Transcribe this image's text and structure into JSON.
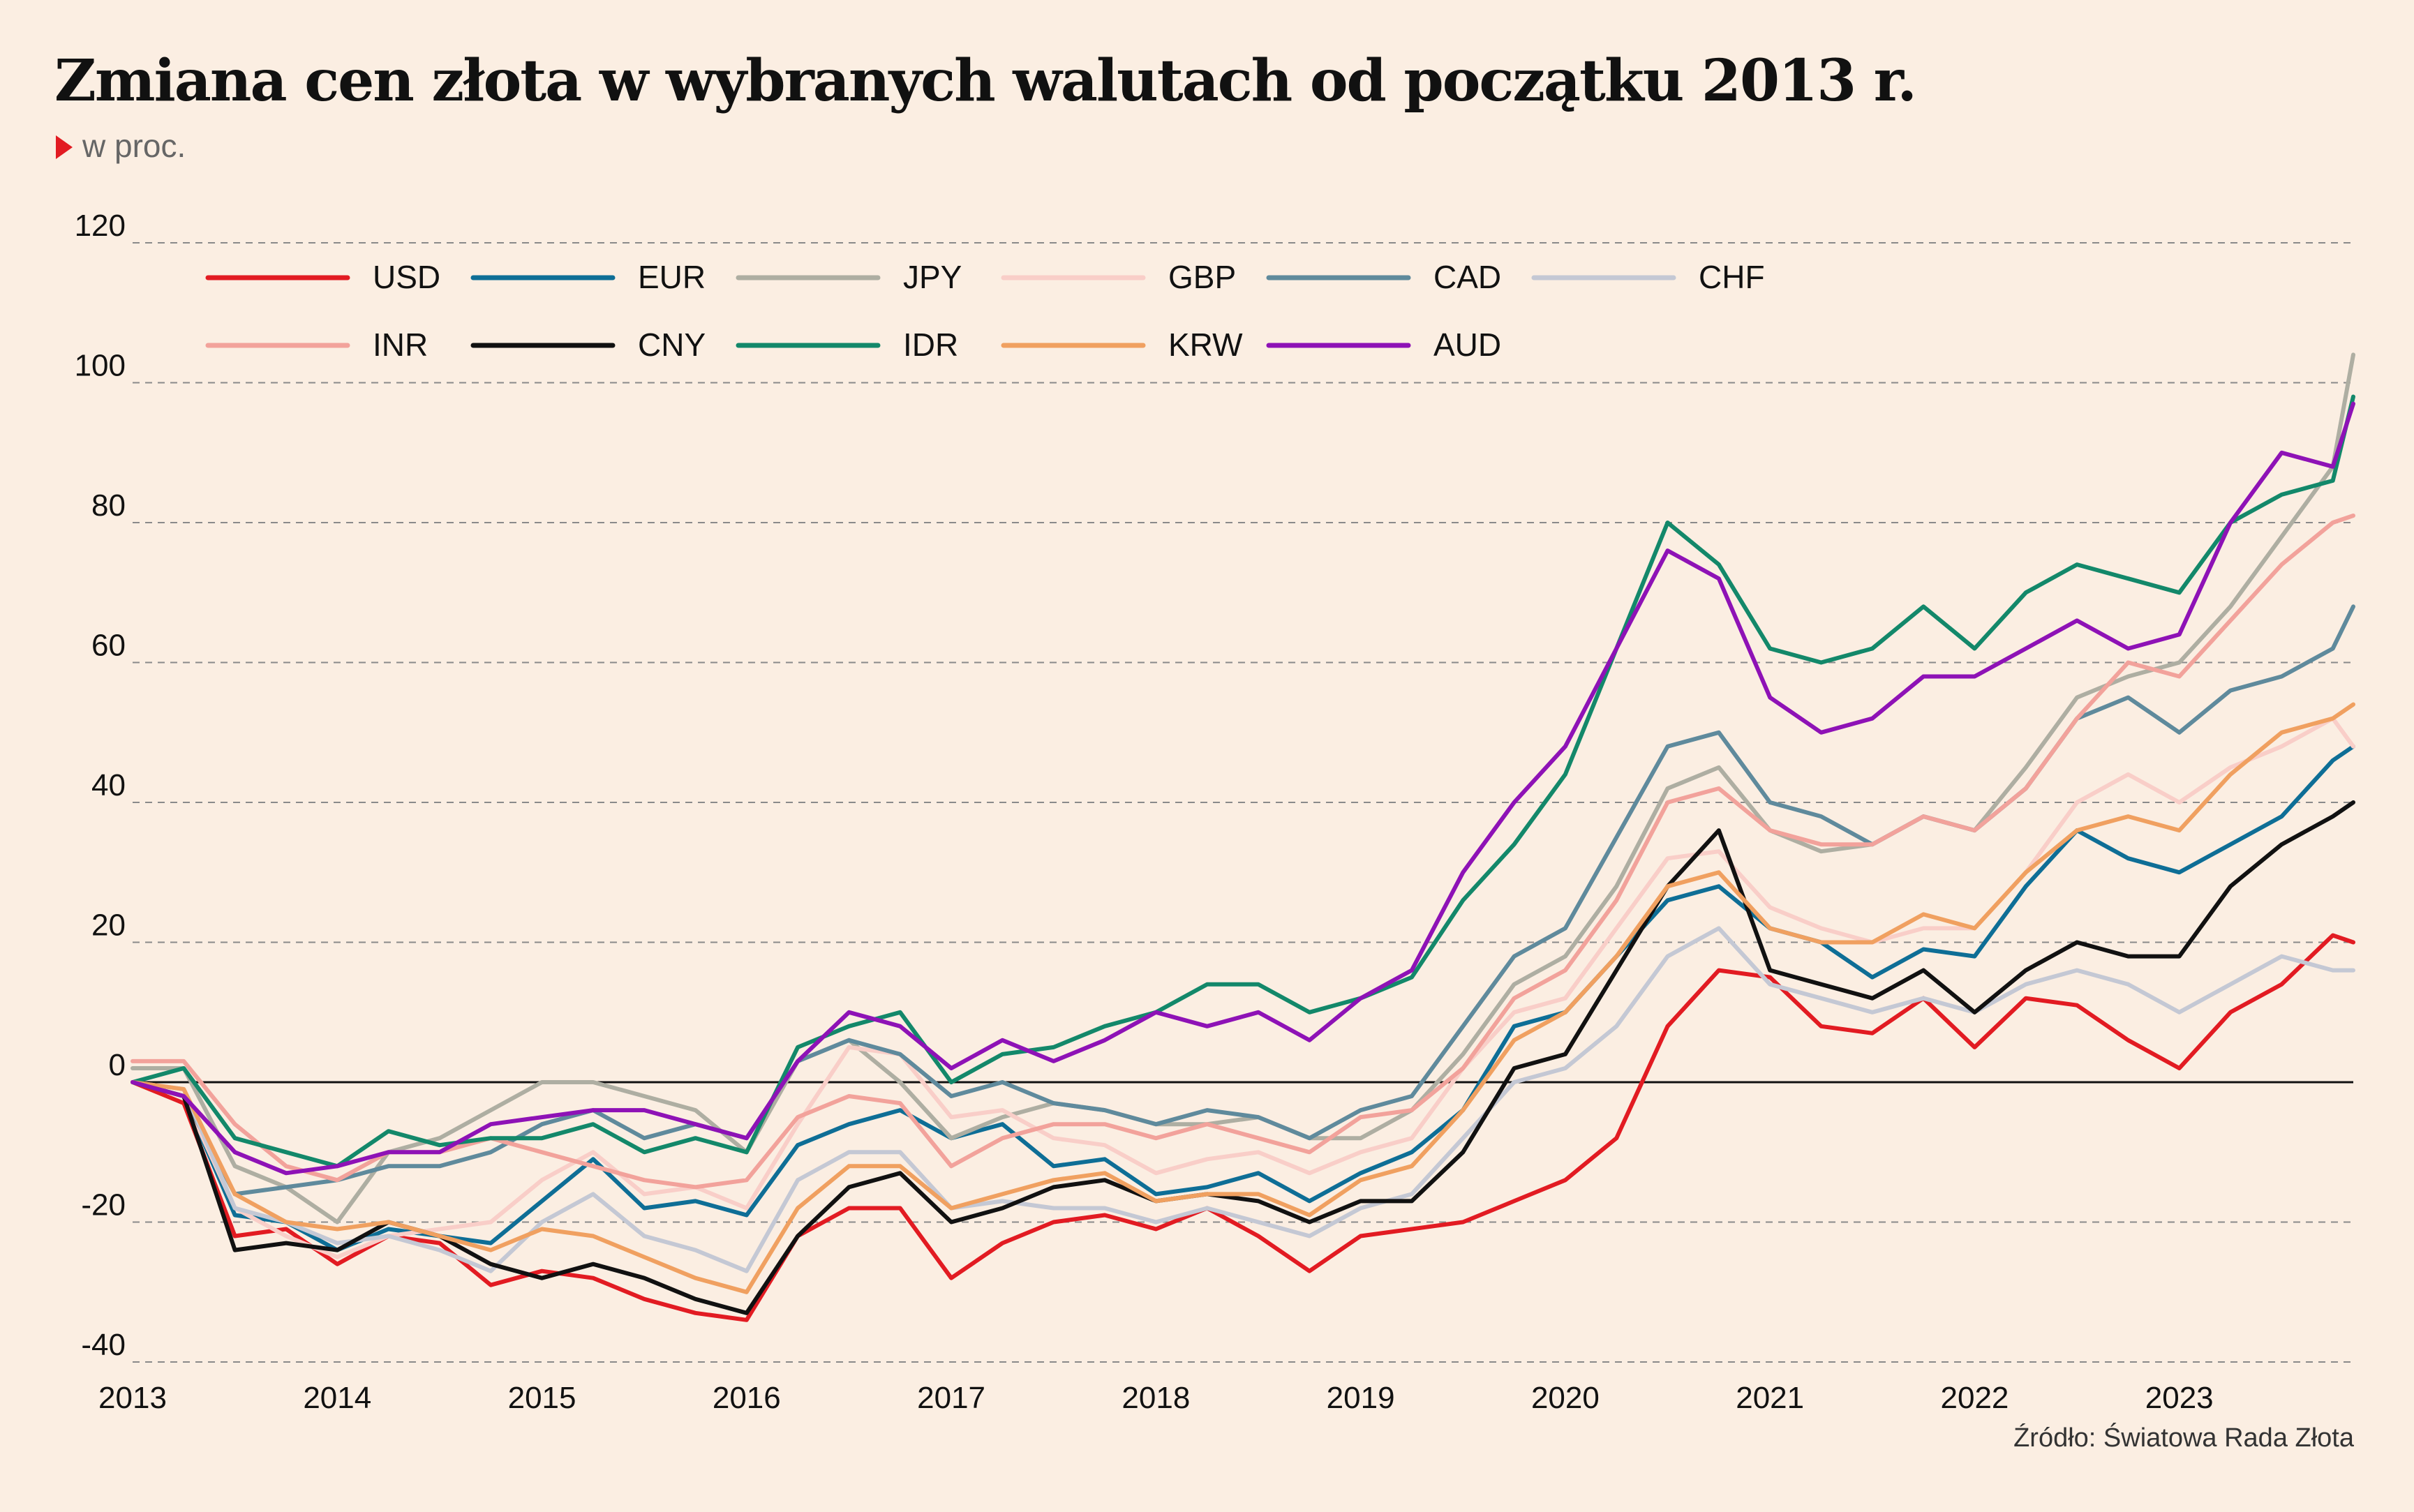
{
  "title": "Zmiana cen złota w wybranych walutach od początku 2013 r.",
  "subtitle": "w proc.",
  "source": "Źródło: Światowa Rada Złota",
  "chart_data": {
    "type": "line",
    "x_unit": "year",
    "xlim": [
      2013.0,
      2023.85
    ],
    "ylim": [
      -40,
      120
    ],
    "y_ticks": [
      120,
      100,
      80,
      60,
      40,
      20,
      0,
      -20,
      -40
    ],
    "x_ticks": [
      "2013",
      "2014",
      "2015",
      "2016",
      "2017",
      "2018",
      "2019",
      "2020",
      "2021",
      "2022",
      "2023"
    ],
    "grid": "horizontal dashed",
    "legend_position": "top-left",
    "x": [
      2013.0,
      2013.25,
      2013.5,
      2013.75,
      2014.0,
      2014.25,
      2014.5,
      2014.75,
      2015.0,
      2015.25,
      2015.5,
      2015.75,
      2016.0,
      2016.25,
      2016.5,
      2016.75,
      2017.0,
      2017.25,
      2017.5,
      2017.75,
      2018.0,
      2018.25,
      2018.5,
      2018.75,
      2019.0,
      2019.25,
      2019.5,
      2019.75,
      2020.0,
      2020.25,
      2020.5,
      2020.75,
      2021.0,
      2021.25,
      2021.5,
      2021.75,
      2022.0,
      2022.25,
      2022.5,
      2022.75,
      2023.0,
      2023.25,
      2023.5,
      2023.75,
      2023.85
    ],
    "series": [
      {
        "name": "USD",
        "color": "#e21b22",
        "values": [
          0,
          -3,
          -22,
          -21,
          -26,
          -22,
          -23,
          -29,
          -27,
          -28,
          -31,
          -33,
          -34,
          -22,
          -18,
          -18,
          -28,
          -23,
          -20,
          -19,
          -21,
          -18,
          -22,
          -27,
          -22,
          -21,
          -20,
          -17,
          -14,
          -8,
          8,
          16,
          15,
          8,
          7,
          12,
          5,
          12,
          11,
          6,
          2,
          10,
          14,
          21,
          20
        ]
      },
      {
        "name": "EUR",
        "color": "#0e6e96",
        "values": [
          0,
          -2,
          -19,
          -20,
          -24,
          -21,
          -22,
          -23,
          -17,
          -11,
          -18,
          -17,
          -19,
          -9,
          -6,
          -4,
          -8,
          -6,
          -12,
          -11,
          -16,
          -15,
          -13,
          -17,
          -13,
          -10,
          -4,
          8,
          10,
          18,
          26,
          28,
          22,
          20,
          15,
          19,
          18,
          28,
          36,
          32,
          30,
          34,
          38,
          46,
          48
        ]
      },
      {
        "name": "JPY",
        "color": "#aeaea2",
        "values": [
          2,
          2,
          -12,
          -15,
          -20,
          -10,
          -8,
          -4,
          0,
          0,
          -2,
          -4,
          -10,
          3,
          6,
          0,
          -8,
          -5,
          -3,
          -4,
          -6,
          -6,
          -5,
          -8,
          -8,
          -4,
          4,
          14,
          18,
          28,
          42,
          45,
          36,
          33,
          34,
          38,
          36,
          45,
          55,
          58,
          60,
          68,
          78,
          88,
          104
        ]
      },
      {
        "name": "GBP",
        "color": "#f9cec8",
        "values": [
          0,
          -2,
          -18,
          -22,
          -25,
          -22,
          -21,
          -20,
          -14,
          -10,
          -16,
          -15,
          -18,
          -6,
          5,
          4,
          -5,
          -4,
          -8,
          -9,
          -13,
          -11,
          -10,
          -13,
          -10,
          -8,
          2,
          10,
          12,
          22,
          32,
          33,
          25,
          22,
          20,
          22,
          22,
          30,
          40,
          44,
          40,
          45,
          48,
          52,
          48
        ]
      },
      {
        "name": "CAD",
        "color": "#5f8a9c",
        "values": [
          0,
          -2,
          -16,
          -15,
          -14,
          -12,
          -12,
          -10,
          -6,
          -4,
          -8,
          -6,
          -8,
          3,
          6,
          4,
          -2,
          0,
          -3,
          -4,
          -6,
          -4,
          -5,
          -8,
          -4,
          -2,
          8,
          18,
          22,
          35,
          48,
          50,
          40,
          38,
          34,
          38,
          36,
          42,
          52,
          55,
          50,
          56,
          58,
          62,
          68
        ]
      },
      {
        "name": "CHF",
        "color": "#c4c8d4",
        "values": [
          0,
          -1,
          -18,
          -20,
          -23,
          -22,
          -24,
          -27,
          -20,
          -16,
          -22,
          -24,
          -27,
          -14,
          -10,
          -10,
          -18,
          -17,
          -18,
          -18,
          -20,
          -18,
          -20,
          -22,
          -18,
          -16,
          -8,
          0,
          2,
          8,
          18,
          22,
          14,
          12,
          10,
          12,
          10,
          14,
          16,
          14,
          10,
          14,
          18,
          16,
          16
        ]
      },
      {
        "name": "INR",
        "color": "#f2a29b",
        "values": [
          3,
          3,
          -6,
          -12,
          -14,
          -10,
          -10,
          -8,
          -10,
          -12,
          -14,
          -15,
          -14,
          -5,
          -2,
          -3,
          -12,
          -8,
          -6,
          -6,
          -8,
          -6,
          -8,
          -10,
          -5,
          -4,
          2,
          12,
          16,
          26,
          40,
          42,
          36,
          34,
          34,
          38,
          36,
          42,
          52,
          60,
          58,
          66,
          74,
          80,
          81
        ]
      },
      {
        "name": "CNY",
        "color": "#111111",
        "values": [
          0,
          -2,
          -24,
          -23,
          -24,
          -20,
          -22,
          -26,
          -28,
          -26,
          -28,
          -31,
          -33,
          -22,
          -15,
          -13,
          -20,
          -18,
          -15,
          -14,
          -17,
          -16,
          -17,
          -20,
          -17,
          -17,
          -10,
          2,
          4,
          16,
          28,
          36,
          16,
          14,
          12,
          16,
          10,
          16,
          20,
          18,
          18,
          28,
          34,
          38,
          40
        ]
      },
      {
        "name": "IDR",
        "color": "#13886a",
        "values": [
          0,
          2,
          -8,
          -10,
          -12,
          -7,
          -9,
          -8,
          -8,
          -6,
          -10,
          -8,
          -10,
          5,
          8,
          10,
          0,
          4,
          5,
          8,
          10,
          14,
          14,
          10,
          12,
          15,
          26,
          34,
          44,
          62,
          80,
          74,
          62,
          60,
          62,
          68,
          62,
          70,
          74,
          72,
          70,
          80,
          84,
          86,
          98
        ]
      },
      {
        "name": "KRW",
        "color": "#f0a060",
        "values": [
          0,
          -1,
          -16,
          -20,
          -21,
          -20,
          -22,
          -24,
          -21,
          -22,
          -25,
          -28,
          -30,
          -18,
          -12,
          -12,
          -18,
          -16,
          -14,
          -13,
          -17,
          -16,
          -16,
          -19,
          -14,
          -12,
          -4,
          6,
          10,
          18,
          28,
          30,
          22,
          20,
          20,
          24,
          22,
          30,
          36,
          38,
          36,
          44,
          50,
          52,
          54
        ]
      },
      {
        "name": "AUD",
        "color": "#8e12b6",
        "values": [
          0,
          -2,
          -10,
          -13,
          -12,
          -10,
          -10,
          -6,
          -5,
          -4,
          -4,
          -6,
          -8,
          3,
          10,
          8,
          2,
          6,
          3,
          6,
          10,
          8,
          10,
          6,
          12,
          16,
          30,
          40,
          48,
          62,
          76,
          72,
          55,
          50,
          52,
          58,
          58,
          62,
          66,
          62,
          64,
          80,
          90,
          88,
          97
        ]
      }
    ]
  }
}
